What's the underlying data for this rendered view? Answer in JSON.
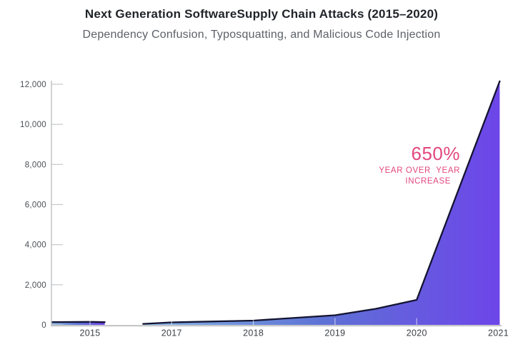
{
  "header": {
    "title": "Next Generation SoftwareSupply Chain Attacks (2015–2020)",
    "subtitle": "Dependency Confusion, Typosquatting, and Malicious Code Injection"
  },
  "annotation": {
    "headline": "650%",
    "line1": "YEAR OVER  YEAR",
    "line2": "INCREASE"
  },
  "chart_data": {
    "type": "area",
    "title": "Next Generation SoftwareSupply Chain Attacks (2015–2020)",
    "subtitle": "Dependency Confusion, Typosquatting, and Malicious Code Injection",
    "x_categories": [
      "2015",
      "2017",
      "2018",
      "2019",
      "2020",
      "2021"
    ],
    "values_by_year": {
      "2015": 150,
      "2016": null,
      "2017": 125,
      "2018": 215,
      "2019": 480,
      "2020": 1245,
      "2021": 12150
    },
    "ylim": [
      0,
      12000
    ],
    "grid": "off",
    "legend": "none",
    "note": "x axis is categorical (2016 label absent); data series has a gap between the 2015 and 2017 categories; slot 0 = 2015 label position, slot 5 = 2021",
    "y_ticks": [
      {
        "v": 0,
        "label": "0"
      },
      {
        "v": 2000,
        "label": "2,000"
      },
      {
        "v": 4000,
        "label": "4,000"
      },
      {
        "v": 6000,
        "label": "6,000"
      },
      {
        "v": 8000,
        "label": "8,000"
      },
      {
        "v": 10000,
        "label": "10,000"
      },
      {
        "v": 12000,
        "label": "12,000"
      }
    ],
    "x_labels": [
      {
        "slot": 0,
        "label": "2015"
      },
      {
        "slot": 1,
        "label": "2017"
      },
      {
        "slot": 2,
        "label": "2018"
      },
      {
        "slot": 3,
        "label": "2019"
      },
      {
        "slot": 4,
        "label": "2020"
      },
      {
        "slot": 5,
        "label": "2021"
      }
    ],
    "x_tick_slots": [
      0,
      1,
      2,
      3,
      4
    ],
    "segments": [
      {
        "name": "segment-2015",
        "points": [
          [
            -0.47,
            140
          ],
          [
            0,
            150
          ],
          [
            0.18,
            135
          ]
        ]
      },
      {
        "name": "segment-main",
        "points": [
          [
            0.65,
            50
          ],
          [
            1,
            125
          ],
          [
            2,
            215
          ],
          [
            3,
            480
          ],
          [
            3.5,
            800
          ],
          [
            4,
            1245
          ],
          [
            5.017,
            12150
          ]
        ]
      }
    ],
    "colors": {
      "fill_gradient_start": "#83b5e4",
      "fill_gradient_mid": "#5e72d5",
      "fill_gradient_end": "#6d45e9",
      "series_line": "#141432",
      "axis_line": "#bdbec1",
      "y_tick_line": "#c7c8cb",
      "y_label_text": "#4a4e54",
      "x_label_text": "#3c4147",
      "x_tick_overlay": "rgba(255,255,255,0.55)",
      "accent_pink": "#e2477e"
    }
  }
}
